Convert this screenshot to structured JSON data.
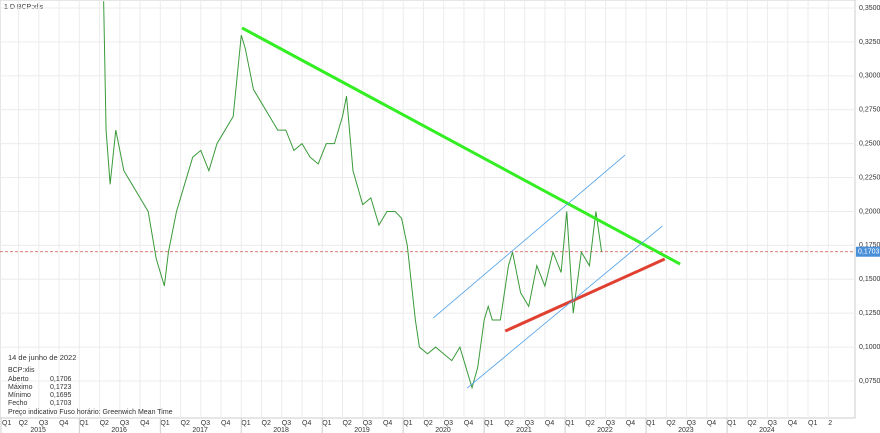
{
  "chart_data": {
    "type": "line",
    "header": "1 D   BCP:xlis",
    "series": [
      {
        "name": "BCP:xlis",
        "color": "#3a9a3a",
        "x": [
          2016.3,
          2016.33,
          2016.38,
          2016.45,
          2016.55,
          2016.65,
          2016.75,
          2016.85,
          2016.95,
          2017.05,
          2017.1,
          2017.2,
          2017.3,
          2017.4,
          2017.5,
          2017.6,
          2017.7,
          2017.8,
          2017.9,
          2018.0,
          2018.05,
          2018.15,
          2018.25,
          2018.35,
          2018.45,
          2018.55,
          2018.65,
          2018.75,
          2018.85,
          2018.95,
          2019.05,
          2019.15,
          2019.25,
          2019.3,
          2019.38,
          2019.5,
          2019.6,
          2019.7,
          2019.8,
          2019.9,
          2019.98,
          2020.05,
          2020.15,
          2020.2,
          2020.3,
          2020.4,
          2020.5,
          2020.6,
          2020.7,
          2020.8,
          2020.85,
          2020.92,
          2021.0,
          2021.05,
          2021.1,
          2021.2,
          2021.3,
          2021.35,
          2021.45,
          2021.55,
          2021.65,
          2021.75,
          2021.85,
          2021.95,
          2022.02,
          2022.1,
          2022.2,
          2022.3,
          2022.38,
          2022.45
        ],
        "values": [
          0.355,
          0.26,
          0.22,
          0.26,
          0.23,
          0.22,
          0.21,
          0.2,
          0.165,
          0.145,
          0.17,
          0.2,
          0.22,
          0.24,
          0.245,
          0.23,
          0.25,
          0.26,
          0.27,
          0.33,
          0.32,
          0.29,
          0.28,
          0.27,
          0.26,
          0.26,
          0.245,
          0.25,
          0.24,
          0.235,
          0.25,
          0.25,
          0.27,
          0.285,
          0.23,
          0.205,
          0.21,
          0.19,
          0.2,
          0.2,
          0.195,
          0.175,
          0.12,
          0.1,
          0.095,
          0.1,
          0.095,
          0.09,
          0.1,
          0.08,
          0.07,
          0.085,
          0.12,
          0.13,
          0.12,
          0.12,
          0.16,
          0.17,
          0.14,
          0.13,
          0.16,
          0.145,
          0.17,
          0.155,
          0.2,
          0.125,
          0.17,
          0.16,
          0.2,
          0.1703
        ]
      }
    ],
    "trendlines": [
      {
        "color": "#33ee22",
        "x": [
          2018.01,
          2023.42
        ],
        "y": [
          0.3353,
          0.1612
        ]
      },
      {
        "color": "#e04030",
        "x": [
          2021.26,
          2023.23
        ],
        "y": [
          0.1118,
          0.1649
        ]
      },
      {
        "color": "#4a9ee8",
        "x": [
          2020.37,
          2022.74
        ],
        "y": [
          0.1214,
          0.2416
        ]
      },
      {
        "color": "#4a9ee8",
        "x": [
          2020.79,
          2023.2
        ],
        "y": [
          0.0698,
          0.1892
        ]
      }
    ],
    "last_price": {
      "value": 0.1703,
      "label": "0,1703"
    },
    "xlim": [
      2015.02,
      2025.58
    ],
    "ylim": [
      0.0477,
      0.3559
    ],
    "yticks": [
      {
        "value": 0.075,
        "label": "0,0750"
      },
      {
        "value": 0.1,
        "label": "0,1000"
      },
      {
        "value": 0.125,
        "label": "0,1250"
      },
      {
        "value": 0.15,
        "label": "0,1500"
      },
      {
        "value": 0.175,
        "label": "0,1750"
      },
      {
        "value": 0.2,
        "label": "0,2000"
      },
      {
        "value": 0.225,
        "label": "0,2250"
      },
      {
        "value": 0.25,
        "label": "0,2500"
      },
      {
        "value": 0.275,
        "label": "0,2750"
      },
      {
        "value": 0.3,
        "label": "0,3000"
      },
      {
        "value": 0.325,
        "label": "0,3250"
      },
      {
        "value": 0.35,
        "label": "0,3500"
      }
    ],
    "xticks": [
      {
        "value": 2015.0,
        "label": "Q1"
      },
      {
        "value": 2015.25,
        "label": "Q2"
      },
      {
        "value": 2015.5,
        "label": "Q3"
      },
      {
        "value": 2015.75,
        "label": "Q4"
      },
      {
        "value": 2016.0,
        "label": "Q1"
      },
      {
        "value": 2016.25,
        "label": "Q2"
      },
      {
        "value": 2016.5,
        "label": "Q3"
      },
      {
        "value": 2016.75,
        "label": "Q4"
      },
      {
        "value": 2017.0,
        "label": "Q1"
      },
      {
        "value": 2017.25,
        "label": "Q2"
      },
      {
        "value": 2017.5,
        "label": "Q3"
      },
      {
        "value": 2017.75,
        "label": "Q4"
      },
      {
        "value": 2018.0,
        "label": "Q1"
      },
      {
        "value": 2018.25,
        "label": "Q2"
      },
      {
        "value": 2018.5,
        "label": "Q3"
      },
      {
        "value": 2018.75,
        "label": "Q4"
      },
      {
        "value": 2019.0,
        "label": "Q1"
      },
      {
        "value": 2019.25,
        "label": "Q2"
      },
      {
        "value": 2019.5,
        "label": "Q3"
      },
      {
        "value": 2019.75,
        "label": "Q4"
      },
      {
        "value": 2020.0,
        "label": "Q1"
      },
      {
        "value": 2020.25,
        "label": "Q2"
      },
      {
        "value": 2020.5,
        "label": "Q3"
      },
      {
        "value": 2020.75,
        "label": "Q4"
      },
      {
        "value": 2021.0,
        "label": "Q1"
      },
      {
        "value": 2021.25,
        "label": "Q2"
      },
      {
        "value": 2021.5,
        "label": "Q3"
      },
      {
        "value": 2021.75,
        "label": "Q4"
      },
      {
        "value": 2022.0,
        "label": "Q1"
      },
      {
        "value": 2022.25,
        "label": "Q2"
      },
      {
        "value": 2022.5,
        "label": "Q3"
      },
      {
        "value": 2022.75,
        "label": "Q4"
      },
      {
        "value": 2023.0,
        "label": "Q1"
      },
      {
        "value": 2023.25,
        "label": "Q2"
      },
      {
        "value": 2023.5,
        "label": "Q3"
      },
      {
        "value": 2023.75,
        "label": "Q4"
      },
      {
        "value": 2024.0,
        "label": "Q1"
      },
      {
        "value": 2024.25,
        "label": "Q2"
      },
      {
        "value": 2024.5,
        "label": "Q3"
      },
      {
        "value": 2024.75,
        "label": "Q4"
      },
      {
        "value": 2025.0,
        "label": "Q1"
      },
      {
        "value": 2025.25,
        "label": "2"
      }
    ],
    "year_ticks": [
      {
        "value": 2015,
        "label": "2015"
      },
      {
        "value": 2016,
        "label": "2016"
      },
      {
        "value": 2017,
        "label": "2017"
      },
      {
        "value": 2018,
        "label": "2018"
      },
      {
        "value": 2019,
        "label": "2019"
      },
      {
        "value": 2020,
        "label": "2020"
      },
      {
        "value": 2021,
        "label": "2021"
      },
      {
        "value": 2022,
        "label": "2022"
      },
      {
        "value": 2023,
        "label": "2023"
      },
      {
        "value": 2024,
        "label": "2024"
      }
    ],
    "grid": true,
    "info": {
      "date": "14 de junho de 2022",
      "symbol": "BCP:xlis",
      "rows": [
        [
          "Aberto",
          "0,1706"
        ],
        [
          "Máximo",
          "0,1723"
        ],
        [
          "Mínimo",
          "0,1695"
        ],
        [
          "Fecho",
          "0,1703"
        ]
      ],
      "footer": "Preço indicativo   Fuso horário: Greenwich Mean Time"
    }
  }
}
